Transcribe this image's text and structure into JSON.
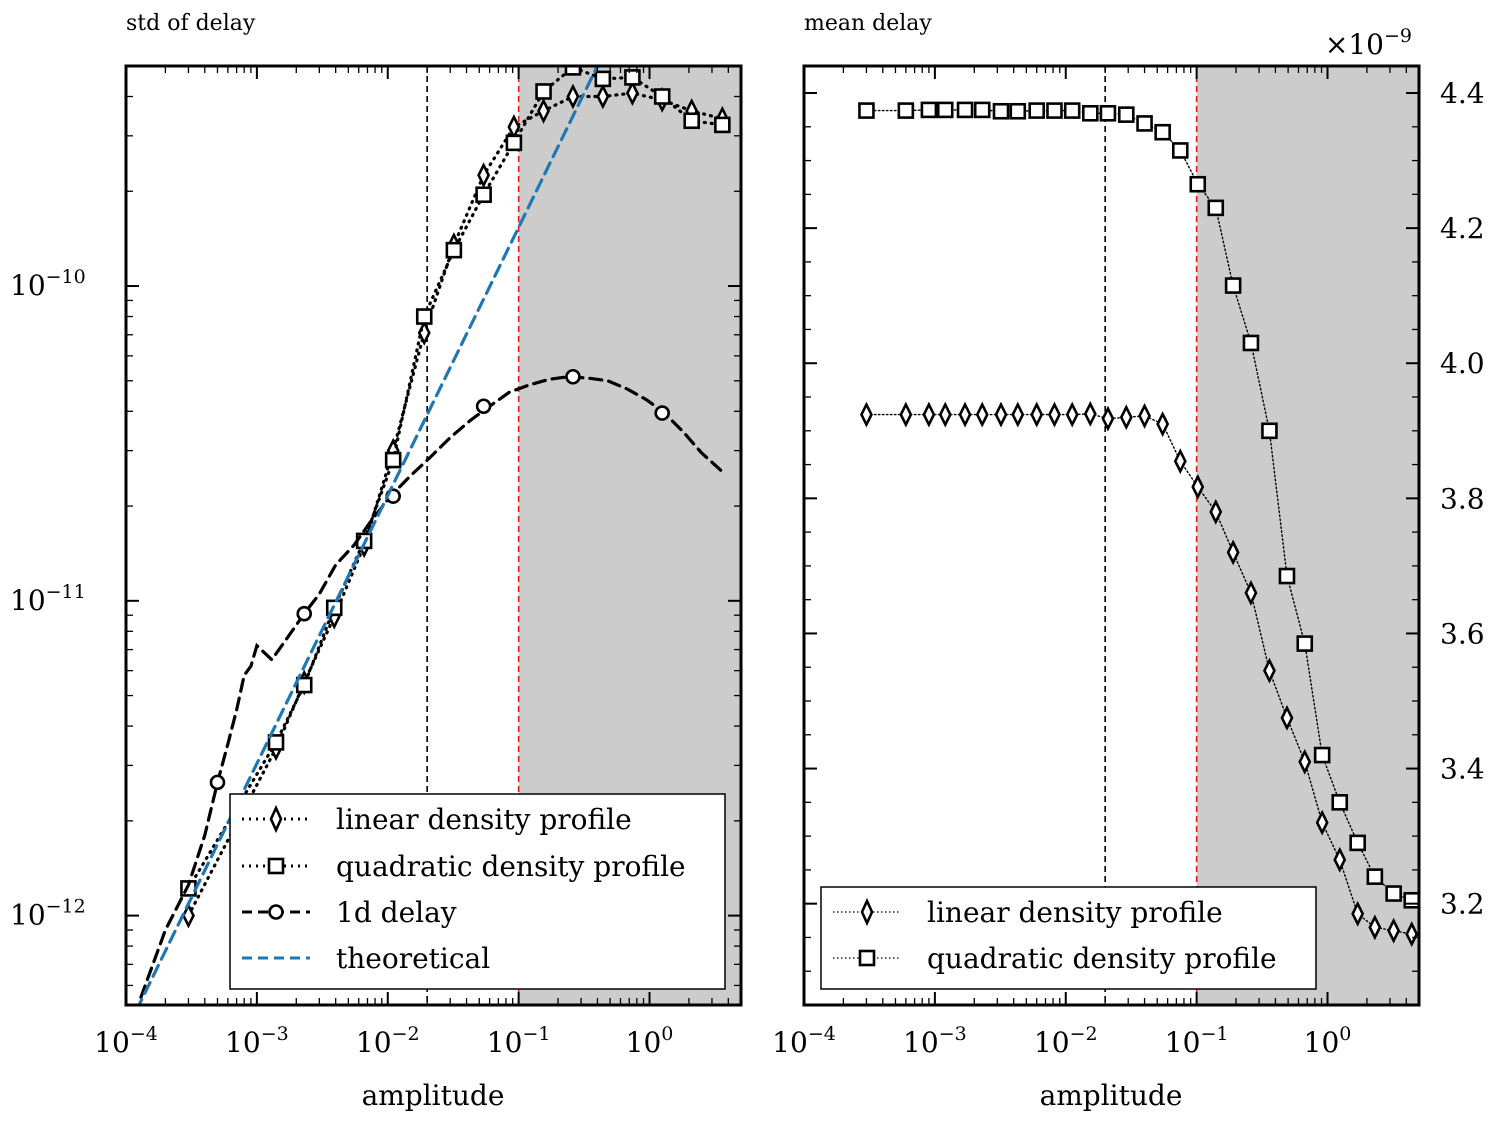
{
  "chart_data": [
    {
      "type": "line",
      "title": "std of delay",
      "xlabel": "amplitude",
      "ylabel": "",
      "xscale": "log",
      "yscale": "log",
      "xlim": [
        0.0001,
        5.0
      ],
      "ylim": [
        5.2e-13,
        5e-10
      ],
      "x_tick_labels": [
        "10^-4",
        "10^-3",
        "10^-2",
        "10^-1",
        "10^0"
      ],
      "y_tick_labels": [
        "10^-12",
        "10^-11",
        "10^-10"
      ],
      "vertical_lines": [
        {
          "x": 0.02,
          "color": "#000000",
          "style": "dashed"
        },
        {
          "x": 0.1,
          "color": "#e41a1c",
          "style": "dashed"
        }
      ],
      "shaded_region": {
        "x_from": 0.1,
        "x_to": 5.0,
        "color": "#cccccc"
      },
      "legend_position": "lower right",
      "series": [
        {
          "name": "linear density profile",
          "style": "dotted",
          "marker": "thin_diamond",
          "color": "#000000",
          "x": [
            0.0003,
            0.0014,
            0.0023,
            0.0039,
            0.0066,
            0.011,
            0.019,
            0.032,
            0.054,
            0.092,
            0.155,
            0.26,
            0.44,
            0.74,
            1.25,
            2.1,
            3.6
          ],
          "y": [
            1e-12,
            3.4e-12,
            5.5e-12,
            8.9e-12,
            1.5e-11,
            3e-11,
            7.1e-11,
            1.35e-10,
            2.25e-10,
            3.2e-10,
            3.6e-10,
            4e-10,
            4e-10,
            4.1e-10,
            3.9e-10,
            3.6e-10,
            3.4e-10
          ]
        },
        {
          "name": "quadratic density profile",
          "style": "dotted",
          "marker": "square",
          "color": "#000000",
          "x": [
            0.0003,
            0.0014,
            0.0023,
            0.0039,
            0.0066,
            0.011,
            0.019,
            0.032,
            0.054,
            0.092,
            0.155,
            0.26,
            0.44,
            0.74,
            1.25,
            2.1,
            3.6
          ],
          "y": [
            1.22e-12,
            3.55e-12,
            5.4e-12,
            9.5e-12,
            1.55e-11,
            2.8e-11,
            8e-11,
            1.3e-10,
            1.95e-10,
            2.85e-10,
            4.15e-10,
            4.95e-10,
            4.55e-10,
            4.6e-10,
            4e-10,
            3.35e-10,
            3.25e-10
          ]
        },
        {
          "name": "1d delay",
          "style": "dashed",
          "marker": "circle",
          "color": "#000000",
          "x": [
            0.00013,
            0.0002,
            0.0003,
            0.0004,
            0.0005,
            0.0006,
            0.0007,
            0.0008,
            0.0009,
            0.001,
            0.0013,
            0.0017,
            0.0023,
            0.003,
            0.004,
            0.0055,
            0.0075,
            0.0105,
            0.015,
            0.021,
            0.03,
            0.043,
            0.06,
            0.085,
            0.12,
            0.17,
            0.24,
            0.34,
            0.48,
            0.68,
            0.95,
            1.3,
            1.8,
            2.5,
            3.5
          ],
          "y": [
            5.5e-13,
            9e-13,
            1.25e-12,
            1.8e-12,
            2.65e-12,
            3.5e-12,
            4.5e-12,
            5.8e-12,
            6.2e-12,
            7.2e-12,
            6.5e-12,
            7.6e-12,
            9.1e-12,
            1.05e-11,
            1.3e-11,
            1.5e-11,
            1.8e-11,
            2.15e-11,
            2.5e-11,
            2.85e-11,
            3.3e-11,
            3.75e-11,
            4.15e-11,
            4.6e-11,
            4.85e-11,
            5.05e-11,
            5.15e-11,
            5.1e-11,
            5e-11,
            4.7e-11,
            4.35e-11,
            3.95e-11,
            3.45e-11,
            2.95e-11,
            2.6e-11
          ],
          "marker_x": [
            0.0005,
            0.0023,
            0.011,
            0.054,
            0.26,
            1.25
          ],
          "marker_y": [
            2.65e-12,
            9.1e-12,
            2.15e-11,
            4.15e-11,
            5.15e-11,
            3.95e-11
          ]
        },
        {
          "name": "theoretical",
          "style": "dashed",
          "marker": "none",
          "color": "#1f77b4",
          "x": [
            0.00012,
            0.4
          ],
          "y": [
            5e-13,
            5e-10
          ]
        }
      ]
    },
    {
      "type": "line",
      "title": "mean delay",
      "xlabel": "amplitude",
      "ylabel": "",
      "xscale": "log",
      "yscale": "linear",
      "offset_text": "×10^-9",
      "xlim": [
        0.0001,
        5.0
      ],
      "ylim": [
        3.05e-09,
        4.44e-09
      ],
      "x_tick_labels": [
        "10^-4",
        "10^-3",
        "10^-2",
        "10^-1",
        "10^0"
      ],
      "y_tick_labels": [
        "3.2",
        "3.4",
        "3.6",
        "3.8",
        "4.0",
        "4.2",
        "4.4"
      ],
      "vertical_lines": [
        {
          "x": 0.02,
          "color": "#000000",
          "style": "dashed"
        },
        {
          "x": 0.1,
          "color": "#e41a1c",
          "style": "dashed"
        }
      ],
      "shaded_region": {
        "x_from": 0.1,
        "x_to": 5.0,
        "color": "#cccccc"
      },
      "legend_position": "lower right",
      "series": [
        {
          "name": "linear density profile",
          "style": "dotted",
          "marker": "thin_diamond",
          "color": "#000000",
          "x": [
            0.0003,
            0.0006,
            0.0009,
            0.0012,
            0.0017,
            0.0023,
            0.0032,
            0.0043,
            0.006,
            0.0082,
            0.0112,
            0.0154,
            0.021,
            0.029,
            0.04,
            0.055,
            0.075,
            0.102,
            0.14,
            0.19,
            0.26,
            0.36,
            0.49,
            0.67,
            0.91,
            1.24,
            1.7,
            2.3,
            3.2,
            4.4
          ],
          "y": [
            3.924e-09,
            3.924e-09,
            3.924e-09,
            3.924e-09,
            3.924e-09,
            3.924e-09,
            3.924e-09,
            3.924e-09,
            3.924e-09,
            3.924e-09,
            3.924e-09,
            3.925e-09,
            3.918e-09,
            3.92e-09,
            3.922e-09,
            3.91e-09,
            3.855e-09,
            3.817e-09,
            3.78e-09,
            3.72e-09,
            3.66e-09,
            3.545e-09,
            3.475e-09,
            3.41e-09,
            3.32e-09,
            3.265e-09,
            3.185e-09,
            3.165e-09,
            3.16e-09,
            3.155e-09
          ]
        },
        {
          "name": "quadratic density profile",
          "style": "dotted",
          "marker": "square",
          "color": "#000000",
          "x": [
            0.0003,
            0.0006,
            0.0009,
            0.0012,
            0.0017,
            0.0023,
            0.0032,
            0.0043,
            0.006,
            0.0082,
            0.0112,
            0.0154,
            0.021,
            0.029,
            0.04,
            0.055,
            0.075,
            0.102,
            0.14,
            0.19,
            0.26,
            0.36,
            0.49,
            0.67,
            0.91,
            1.24,
            1.7,
            2.3,
            3.2,
            4.4
          ],
          "y": [
            4.374e-09,
            4.374e-09,
            4.375e-09,
            4.375e-09,
            4.375e-09,
            4.375e-09,
            4.373e-09,
            4.373e-09,
            4.374e-09,
            4.374e-09,
            4.374e-09,
            4.37e-09,
            4.37e-09,
            4.368e-09,
            4.355e-09,
            4.342e-09,
            4.315e-09,
            4.265e-09,
            4.23e-09,
            4.115e-09,
            4.03e-09,
            3.9e-09,
            3.685e-09,
            3.585e-09,
            3.42e-09,
            3.35e-09,
            3.29e-09,
            3.24e-09,
            3.215e-09,
            3.205e-09
          ]
        }
      ]
    }
  ]
}
